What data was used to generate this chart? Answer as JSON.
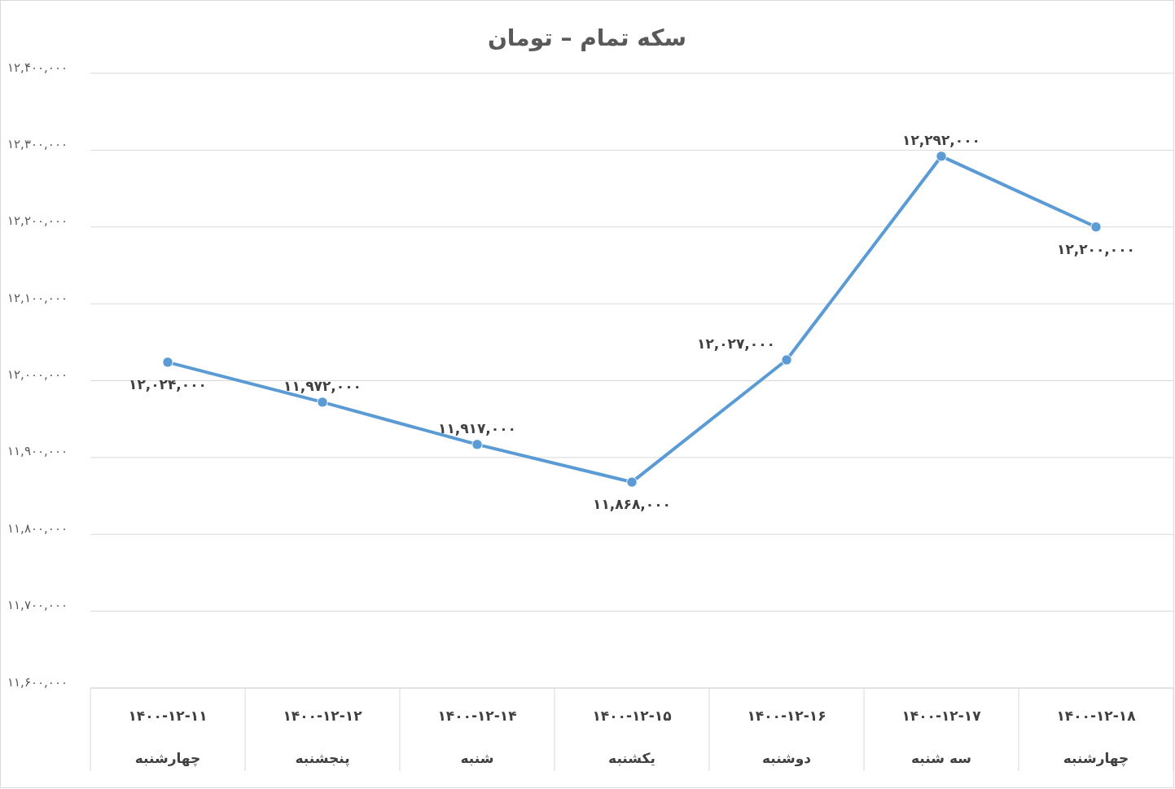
{
  "chart_data": {
    "type": "line",
    "title": "سکه تمام – تومان",
    "categories": [
      "۱۴۰۰-۱۲-۱۱\nچهارشنبه",
      "۱۴۰۰-۱۲-۱۲\nپنجشنبه",
      "۱۴۰۰-۱۲-۱۴\nشنبه",
      "۱۴۰۰-۱۲-۱۵\nیکشنبه",
      "۱۴۰۰-۱۲-۱۶\nدوشنبه",
      "۱۴۰۰-۱۲-۱۷\nسه شنبه",
      "۱۴۰۰-۱۲-۱۸\nچهارشنبه"
    ],
    "series": [
      {
        "color": "#5b9bd5",
        "values": [
          12024000,
          11972000,
          11917000,
          11868000,
          12027000,
          12292000,
          12200000
        ],
        "value_labels": [
          "۱۲,۰۲۴,۰۰۰",
          "۱۱,۹۷۲,۰۰۰",
          "۱۱,۹۱۷,۰۰۰",
          "۱۱,۸۶۸,۰۰۰",
          "۱۲,۰۲۷,۰۰۰",
          "۱۲,۲۹۲,۰۰۰",
          "۱۲,۲۰۰,۰۰۰"
        ]
      }
    ],
    "ylim": [
      11600000,
      12400000
    ],
    "yticks": [
      {
        "value": 11600000,
        "label": "۱۱,۶۰۰,۰۰۰"
      },
      {
        "value": 11700000,
        "label": "۱۱,۷۰۰,۰۰۰"
      },
      {
        "value": 11800000,
        "label": "۱۱,۸۰۰,۰۰۰"
      },
      {
        "value": 11900000,
        "label": "۱۱,۹۰۰,۰۰۰"
      },
      {
        "value": 12000000,
        "label": "۱۲,۰۰۰,۰۰۰"
      },
      {
        "value": 12100000,
        "label": "۱۲,۱۰۰,۰۰۰"
      },
      {
        "value": 12200000,
        "label": "۱۲,۲۰۰,۰۰۰"
      },
      {
        "value": 12300000,
        "label": "۱۲,۳۰۰,۰۰۰"
      },
      {
        "value": 12400000,
        "label": "۱۲,۴۰۰,۰۰۰"
      }
    ],
    "grid": "y",
    "marker": "circle",
    "line_style": "solid"
  }
}
